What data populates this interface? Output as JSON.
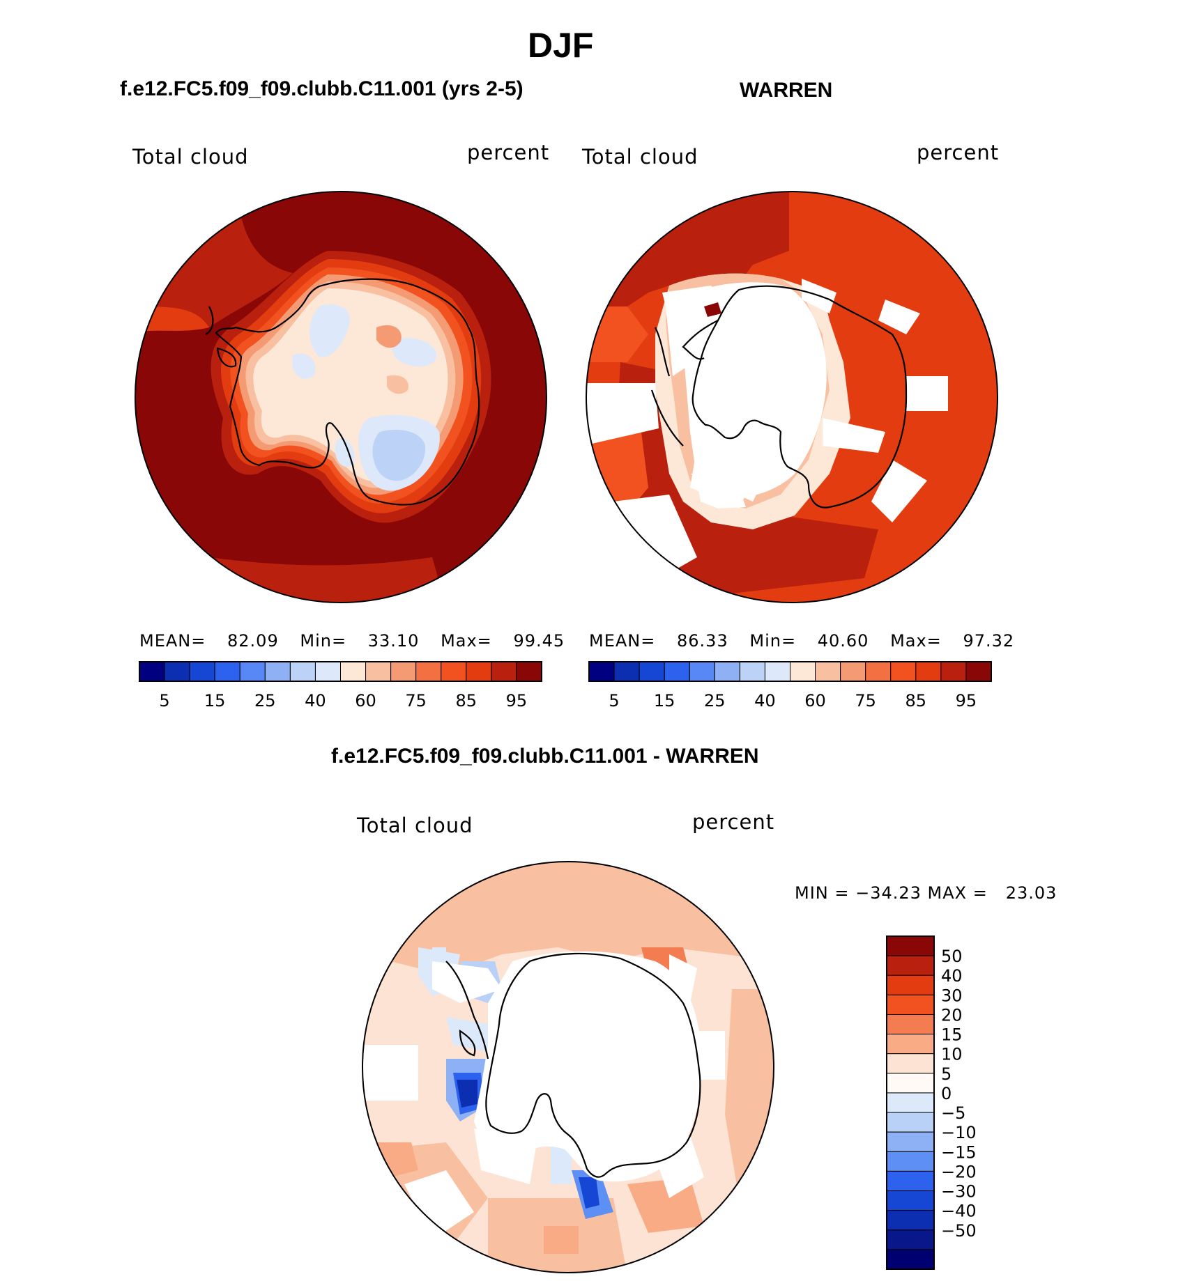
{
  "figure": {
    "season": "DJF",
    "model_title": "f.e12.FC5.f09_f09.clubb.C11.001 (yrs 2-5)",
    "obs_title": "WARREN",
    "diff_title": "f.e12.FC5.f09_f09.clubb.C11.001 - WARREN"
  },
  "panels": {
    "model": {
      "variable": "Total cloud",
      "units": "percent",
      "stats": {
        "mean_label": "MEAN=",
        "mean": "82.09",
        "min_label": "Min=",
        "min": "33.10",
        "max_label": "Max=",
        "max": "99.45"
      }
    },
    "obs": {
      "variable": "Total cloud",
      "units": "percent",
      "stats": {
        "mean_label": "MEAN=",
        "mean": "86.33",
        "min_label": "Min=",
        "min": "40.60",
        "max_label": "Max=",
        "max": "97.32"
      }
    },
    "diff": {
      "variable": "Total cloud",
      "units": "percent",
      "stats_text": "MIN = −34.23 MAX =   23.03"
    }
  },
  "colorbar": {
    "colors": [
      "#000080",
      "#0b2fb0",
      "#1546d4",
      "#2c62ee",
      "#5788f5",
      "#8fb0f5",
      "#bcd2f7",
      "#dde9fa",
      "#fde8d8",
      "#f8c0a1",
      "#f59b74",
      "#f37043",
      "#f2521f",
      "#e23c10",
      "#b9200d",
      "#8a0707"
    ],
    "tick_labels": [
      "5",
      "15",
      "25",
      "40",
      "60",
      "75",
      "85",
      "95"
    ]
  },
  "diff_colorbar": {
    "colors": [
      "#8a0707",
      "#b9200d",
      "#e23c10",
      "#f2521f",
      "#f37c50",
      "#f8ab85",
      "#fde3d3",
      "#fffaf6",
      "#dce9fb",
      "#b9d0f7",
      "#8eb0f5",
      "#5e8ff5",
      "#2c62ee",
      "#1546d4",
      "#0b2fb0",
      "#08178a",
      "#000070"
    ],
    "tick_labels": [
      "50",
      "40",
      "30",
      "20",
      "15",
      "10",
      "5",
      "0",
      "−5",
      "−10",
      "−15",
      "−20",
      "−30",
      "−40",
      "−50"
    ]
  }
}
